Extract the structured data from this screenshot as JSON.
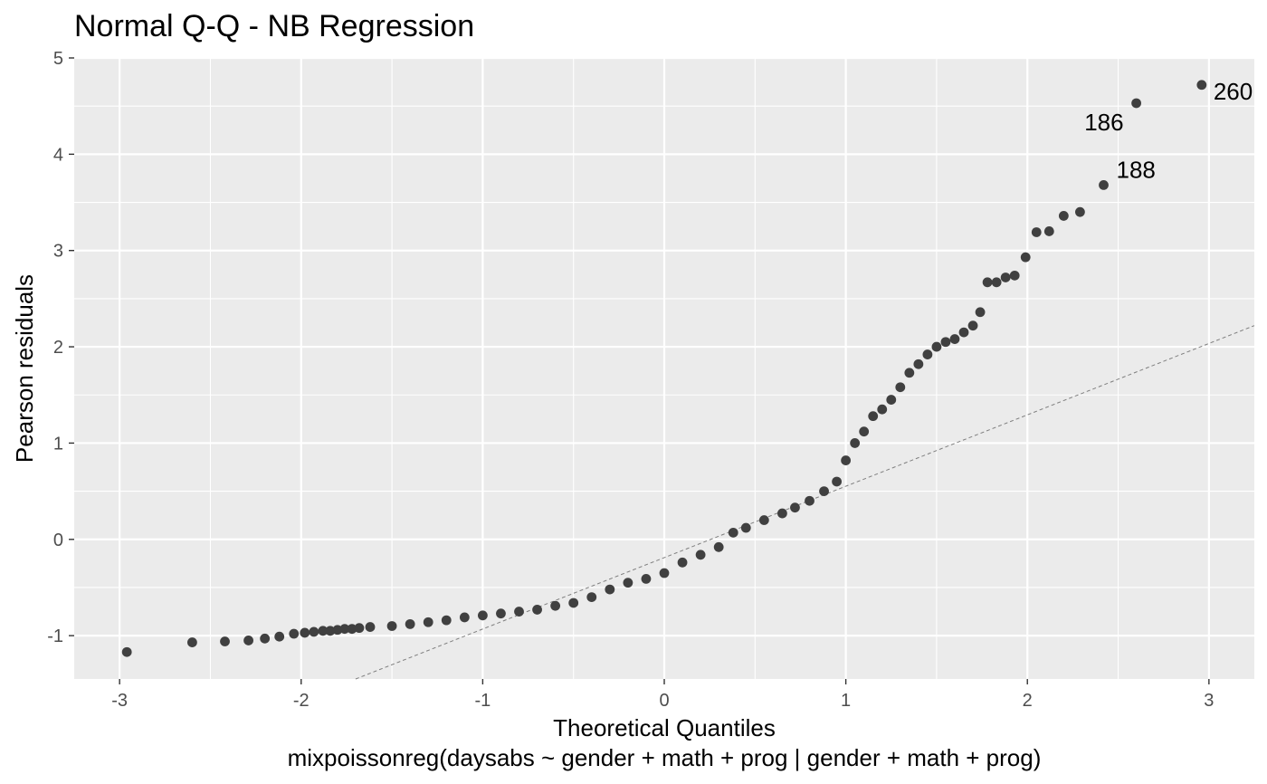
{
  "chart_data": {
    "type": "scatter",
    "title": "Normal Q-Q - NB Regression",
    "xlabel": "Theoretical Quantiles",
    "caption": "mixpoissonreg(daysabs ~ gender + math + prog | gender + math + prog)",
    "ylabel": "Pearson residuals",
    "xlim": [
      -3.25,
      3.25
    ],
    "ylim": [
      -1.45,
      5.0
    ],
    "x_ticks": [
      -3,
      -2,
      -1,
      0,
      1,
      2,
      3
    ],
    "y_ticks": [
      -1,
      0,
      1,
      2,
      3,
      4,
      5
    ],
    "grid": true,
    "panel_background": "#ebebeb",
    "point_color": "#404040",
    "reference_line": {
      "style": "dashed",
      "color": "#7f7f7f",
      "x0": -1.7,
      "y0": -1.45,
      "x1": 3.25,
      "y1": 2.22
    },
    "points": [
      [
        -2.96,
        -1.17
      ],
      [
        -2.6,
        -1.07
      ],
      [
        -2.42,
        -1.06
      ],
      [
        -2.29,
        -1.05
      ],
      [
        -2.2,
        -1.03
      ],
      [
        -2.12,
        -1.01
      ],
      [
        -2.04,
        -0.98
      ],
      [
        -1.98,
        -0.97
      ],
      [
        -1.93,
        -0.96
      ],
      [
        -1.88,
        -0.95
      ],
      [
        -1.84,
        -0.95
      ],
      [
        -1.8,
        -0.94
      ],
      [
        -1.76,
        -0.93
      ],
      [
        -1.72,
        -0.93
      ],
      [
        -1.68,
        -0.92
      ],
      [
        -1.62,
        -0.91
      ],
      [
        -1.5,
        -0.9
      ],
      [
        -1.4,
        -0.88
      ],
      [
        -1.3,
        -0.86
      ],
      [
        -1.2,
        -0.84
      ],
      [
        -1.1,
        -0.81
      ],
      [
        -1.0,
        -0.79
      ],
      [
        -0.9,
        -0.77
      ],
      [
        -0.8,
        -0.75
      ],
      [
        -0.7,
        -0.73
      ],
      [
        -0.6,
        -0.69
      ],
      [
        -0.5,
        -0.66
      ],
      [
        -0.4,
        -0.6
      ],
      [
        -0.3,
        -0.52
      ],
      [
        -0.2,
        -0.45
      ],
      [
        -0.1,
        -0.41
      ],
      [
        0.0,
        -0.35
      ],
      [
        0.1,
        -0.24
      ],
      [
        0.2,
        -0.16
      ],
      [
        0.3,
        -0.08
      ],
      [
        0.38,
        0.07
      ],
      [
        0.45,
        0.12
      ],
      [
        0.55,
        0.2
      ],
      [
        0.65,
        0.27
      ],
      [
        0.72,
        0.33
      ],
      [
        0.8,
        0.4
      ],
      [
        0.88,
        0.5
      ],
      [
        0.95,
        0.6
      ],
      [
        1.0,
        0.82
      ],
      [
        1.05,
        1.0
      ],
      [
        1.1,
        1.12
      ],
      [
        1.15,
        1.28
      ],
      [
        1.2,
        1.35
      ],
      [
        1.25,
        1.45
      ],
      [
        1.3,
        1.58
      ],
      [
        1.35,
        1.73
      ],
      [
        1.4,
        1.82
      ],
      [
        1.45,
        1.92
      ],
      [
        1.5,
        2.0
      ],
      [
        1.55,
        2.05
      ],
      [
        1.6,
        2.08
      ],
      [
        1.65,
        2.15
      ],
      [
        1.7,
        2.22
      ],
      [
        1.74,
        2.36
      ],
      [
        1.78,
        2.67
      ],
      [
        1.83,
        2.67
      ],
      [
        1.88,
        2.72
      ],
      [
        1.93,
        2.74
      ],
      [
        1.99,
        2.93
      ],
      [
        2.05,
        3.19
      ],
      [
        2.12,
        3.2
      ],
      [
        2.2,
        3.36
      ],
      [
        2.29,
        3.4
      ],
      [
        2.42,
        3.68
      ],
      [
        2.6,
        4.53
      ],
      [
        2.96,
        4.72
      ]
    ],
    "labeled_points": [
      {
        "label": "260",
        "x": 2.96,
        "y": 4.72
      },
      {
        "label": "186",
        "x": 2.6,
        "y": 4.53
      },
      {
        "label": "188",
        "x": 2.42,
        "y": 3.68
      }
    ]
  }
}
